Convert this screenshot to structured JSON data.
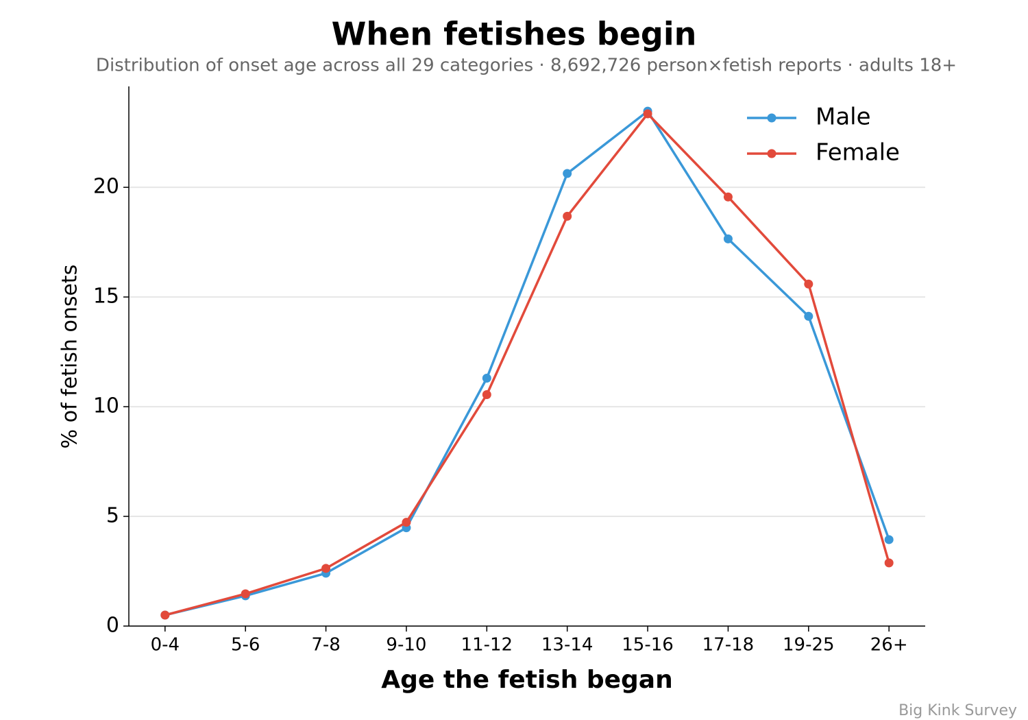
{
  "chart_data": {
    "type": "line",
    "title": "When fetishes begin",
    "subtitle": "Distribution of onset age across all 29 categories · 8,692,726 person×fetish reports · adults 18+",
    "x_label": "Age the fetish began",
    "y_label": "% of fetish onsets",
    "source": "Big Kink Survey",
    "categories": [
      "0-4",
      "5-6",
      "7-8",
      "9-10",
      "11-12",
      "13-14",
      "15-16",
      "17-18",
      "19-25",
      "26+"
    ],
    "series": [
      {
        "name": "Male",
        "color": "#3a98d8",
        "values": [
          0.5,
          1.38,
          2.41,
          4.48,
          11.3,
          20.63,
          23.47,
          17.65,
          14.12,
          3.94
        ]
      },
      {
        "name": "Female",
        "color": "#e24a3b",
        "values": [
          0.5,
          1.47,
          2.63,
          4.73,
          10.55,
          18.68,
          23.35,
          19.56,
          15.59,
          2.88
        ]
      }
    ],
    "ylim": [
      0,
      24.6
    ],
    "yticks": [
      0,
      5,
      10,
      15,
      20
    ],
    "grid": true,
    "legend": "upper right"
  }
}
